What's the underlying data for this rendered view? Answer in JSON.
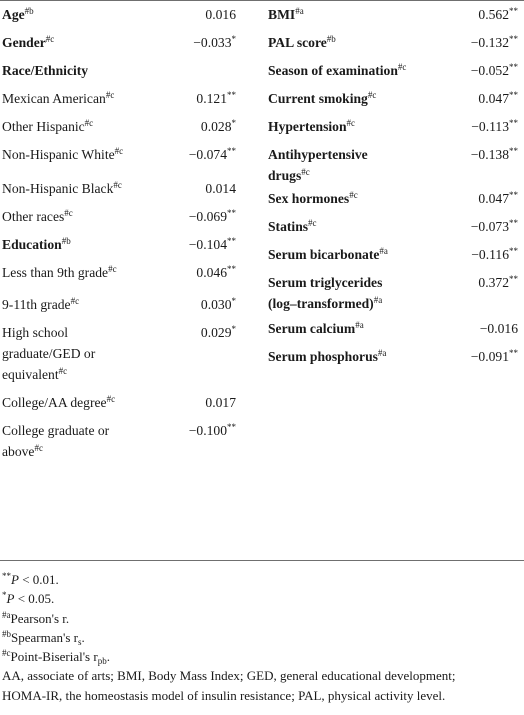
{
  "left_rows": [
    {
      "label": "Age",
      "sup": "#b",
      "value": "0.016",
      "bold": true
    },
    {
      "label": "Gender",
      "sup": "#c",
      "value": "−0.033*",
      "bold": true
    },
    {
      "label": "Race/Ethnicity",
      "sup": "",
      "value": "",
      "bold": true
    },
    {
      "label": "Mexican American",
      "sup": "#c",
      "value": "0.121**",
      "bold": false
    },
    {
      "label": "Other Hispanic",
      "sup": "#c",
      "value": "0.028*",
      "bold": false
    },
    {
      "label": "Non-Hispanic White",
      "sup": "#c",
      "value": "−0.074**",
      "bold": false
    },
    {
      "label": "Non-Hispanic Black",
      "sup": "#c",
      "value": "0.014",
      "bold": false
    },
    {
      "label": "Other races",
      "sup": "#c",
      "value": "−0.069**",
      "bold": false
    },
    {
      "label": "Education",
      "sup": "#b",
      "value": "−0.104**",
      "bold": true
    },
    {
      "label": "Less than 9th grade",
      "sup": "#c",
      "value": "0.046**",
      "bold": false
    },
    {
      "label": "9-11th grade",
      "sup": "#c",
      "value": "0.030*",
      "bold": false
    },
    {
      "label_lines": [
        "High school",
        "graduate/GED or",
        "equivalent"
      ],
      "sup": "#c",
      "value": "0.029*",
      "bold": false
    },
    {
      "label": "College/AA degree",
      "sup": "#c",
      "value": "0.017",
      "bold": false
    },
    {
      "label_lines": [
        "College graduate or",
        "above"
      ],
      "sup": "#c",
      "value": "−0.100**",
      "bold": false
    }
  ],
  "right_rows": [
    {
      "label": "BMI",
      "sup": "#a",
      "value": "0.562**",
      "bold": true
    },
    {
      "label": "PAL score",
      "sup": "#b",
      "value": "−0.132**",
      "bold": true
    },
    {
      "label": "Season of examination",
      "sup": "#c",
      "value": "−0.052**",
      "bold": true
    },
    {
      "label": "Current smoking",
      "sup": "#c",
      "value": "0.047**",
      "bold": true
    },
    {
      "label": "Hypertension",
      "sup": "#c",
      "value": "−0.113**",
      "bold": true
    },
    {
      "label_lines": [
        "Antihypertensive",
        "drugs"
      ],
      "sup": "#c",
      "value": "−0.138**",
      "bold": true
    },
    {
      "label": "Sex hormones",
      "sup": "#c",
      "value": "0.047**",
      "bold": true
    },
    {
      "label": "Statins",
      "sup": "#c",
      "value": "−0.073**",
      "bold": true
    },
    {
      "label": "Serum bicarbonate",
      "sup": "#a",
      "value": "−0.116**",
      "bold": true
    },
    {
      "label_lines": [
        "Serum triglycerides",
        "(log–transformed)"
      ],
      "sup": "#a",
      "value": "0.372**",
      "bold": true
    },
    {
      "label": "Serum calcium",
      "sup": "#a",
      "value": "−0.016",
      "bold": true
    },
    {
      "label": "Serum phosphorus",
      "sup": "#a",
      "value": "−0.091**",
      "bold": true
    }
  ],
  "footnotes": {
    "p01": {
      "sup": "**",
      "text": " < 0.01."
    },
    "p05": {
      "sup": "*",
      "text": " < 0.05."
    },
    "pearson": {
      "sup": "#a",
      "text": "Pearson's r."
    },
    "spearman": {
      "sup": "#b",
      "text": "Spearman's r",
      "sub": "s",
      "tail": "."
    },
    "pointbiserial": {
      "sup": "#c",
      "text": "Point-Biserial's r",
      "sub": "pb",
      "tail": "."
    },
    "abbr_line1": "AA, associate of arts; BMI, Body Mass Index; GED, general educational development;",
    "abbr_line2": "HOMA-IR, the homeostasis model of insulin resistance; PAL, physical activity level.",
    "p_letter": "P"
  }
}
